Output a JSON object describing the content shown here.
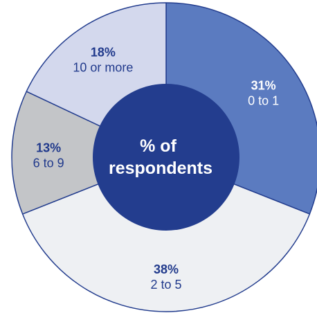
{
  "chart_data": {
    "type": "pie",
    "title": "",
    "center_label_lines": [
      "% of",
      "respondents"
    ],
    "slices": [
      {
        "category": "0 to 1",
        "value": 31,
        "value_label": "31%",
        "color": "#5b7bc0",
        "label_color": "#ffffff"
      },
      {
        "category": "2 to 5",
        "value": 38,
        "value_label": "38%",
        "color": "#eef0f3",
        "label_color": "#213a8c"
      },
      {
        "category": "6 to 9",
        "value": 13,
        "value_label": "13%",
        "color": "#c3c5c8",
        "label_color": "#213a8c"
      },
      {
        "category": "10 or more",
        "value": 18,
        "value_label": "18%",
        "color": "#d3d8ed",
        "label_color": "#213a8c"
      }
    ],
    "start_angle_deg": 0,
    "direction": "clockwise",
    "legend": "none",
    "center_color": "#233d8e",
    "center_text_color": "#ffffff",
    "outline_color": "#233d8e"
  }
}
